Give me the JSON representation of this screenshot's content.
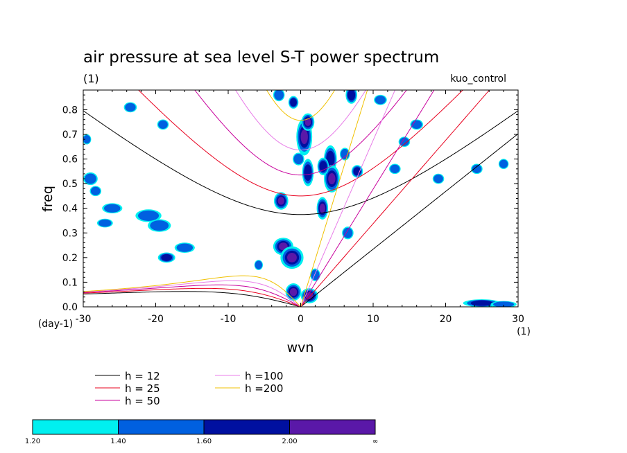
{
  "chart_data": {
    "type": "heatmap",
    "title": "air pressure at sea level S-T power spectrum",
    "subtitle_left": "(1)",
    "subtitle_right": "kuo_control",
    "xlabel": "wvn",
    "ylabel": "freq",
    "x_unit_label": "(1)",
    "y_unit_label": "(day-1)",
    "xlim": [
      -30,
      30
    ],
    "ylim": [
      0,
      0.88
    ],
    "x_ticks": [
      -30,
      -20,
      -10,
      0,
      10,
      20,
      30
    ],
    "x_tick_labels": [
      "-30",
      "-20",
      "-10",
      "0",
      "10",
      "20",
      "30"
    ],
    "y_ticks": [
      0.0,
      0.1,
      0.2,
      0.3,
      0.4,
      0.5,
      0.6,
      0.7,
      0.8
    ],
    "y_tick_labels": [
      "0.0",
      "0.1",
      "0.2",
      "0.3",
      "0.4",
      "0.5",
      "0.6",
      "0.7",
      "0.8"
    ],
    "dispersion_curves": [
      {
        "label": "h = 12",
        "h": 12,
        "color": "#000000"
      },
      {
        "label": "h = 25",
        "h": 25,
        "color": "#e8001e"
      },
      {
        "label": "h = 50",
        "h": 50,
        "color": "#c8009c"
      },
      {
        "label": "h =100",
        "h": 100,
        "color": "#e87ce8"
      },
      {
        "label": "h =200",
        "h": 200,
        "color": "#f0c000"
      }
    ],
    "colorbar": {
      "labels": [
        "1.20",
        "1.40",
        "1.60",
        "2.00",
        "∞"
      ],
      "colors": [
        "#00f0f0",
        "#0060e0",
        "#0010a0",
        "#5a18a8"
      ]
    },
    "blobs": [
      {
        "x": 0.5,
        "y": 0.69,
        "rx": 0.9,
        "ry": 0.07,
        "level": 3
      },
      {
        "x": 1.0,
        "y": 0.75,
        "rx": 0.7,
        "ry": 0.03,
        "level": 3
      },
      {
        "x": 1.0,
        "y": 0.545,
        "rx": 0.6,
        "ry": 0.05,
        "level": 2
      },
      {
        "x": 4.1,
        "y": 0.6,
        "rx": 0.7,
        "ry": 0.05,
        "level": 2
      },
      {
        "x": 4.3,
        "y": 0.52,
        "rx": 0.9,
        "ry": 0.05,
        "level": 3
      },
      {
        "x": 3.1,
        "y": 0.57,
        "rx": 0.6,
        "ry": 0.03,
        "level": 2
      },
      {
        "x": 3.0,
        "y": 0.4,
        "rx": 0.6,
        "ry": 0.04,
        "level": 3
      },
      {
        "x": -2.7,
        "y": 0.43,
        "rx": 0.8,
        "ry": 0.03,
        "level": 3
      },
      {
        "x": -2.4,
        "y": 0.245,
        "rx": 1.2,
        "ry": 0.03,
        "level": 3
      },
      {
        "x": -1.2,
        "y": 0.2,
        "rx": 1.4,
        "ry": 0.04,
        "level": 3
      },
      {
        "x": -1.0,
        "y": 0.06,
        "rx": 0.9,
        "ry": 0.03,
        "level": 3
      },
      {
        "x": 1.2,
        "y": 0.045,
        "rx": 1.0,
        "ry": 0.025,
        "level": 3
      },
      {
        "x": 7.0,
        "y": 0.86,
        "rx": 0.6,
        "ry": 0.03,
        "level": 2
      },
      {
        "x": 6.1,
        "y": 0.62,
        "rx": 0.5,
        "ry": 0.02,
        "level": 1
      },
      {
        "x": 7.8,
        "y": 0.55,
        "rx": 0.6,
        "ry": 0.02,
        "level": 2
      },
      {
        "x": -1.0,
        "y": 0.83,
        "rx": 0.5,
        "ry": 0.02,
        "level": 2
      },
      {
        "x": -0.3,
        "y": 0.6,
        "rx": 0.6,
        "ry": 0.02,
        "level": 1
      },
      {
        "x": -3.0,
        "y": 0.86,
        "rx": 0.6,
        "ry": 0.02,
        "level": 1
      },
      {
        "x": 6.5,
        "y": 0.3,
        "rx": 0.6,
        "ry": 0.02,
        "level": 1
      },
      {
        "x": 2.0,
        "y": 0.13,
        "rx": 0.5,
        "ry": 0.02,
        "level": 1
      },
      {
        "x": -5.8,
        "y": 0.17,
        "rx": 0.4,
        "ry": 0.015,
        "level": 1
      },
      {
        "x": -23.5,
        "y": 0.81,
        "rx": 0.7,
        "ry": 0.015,
        "level": 1
      },
      {
        "x": -19.0,
        "y": 0.74,
        "rx": 0.6,
        "ry": 0.015,
        "level": 1
      },
      {
        "x": -29.0,
        "y": 0.52,
        "rx": 0.8,
        "ry": 0.02,
        "level": 1
      },
      {
        "x": -28.3,
        "y": 0.47,
        "rx": 0.6,
        "ry": 0.015,
        "level": 1
      },
      {
        "x": -26.0,
        "y": 0.4,
        "rx": 1.2,
        "ry": 0.015,
        "level": 1
      },
      {
        "x": -27.0,
        "y": 0.34,
        "rx": 0.9,
        "ry": 0.012,
        "level": 1
      },
      {
        "x": -21.0,
        "y": 0.37,
        "rx": 1.6,
        "ry": 0.02,
        "level": 1
      },
      {
        "x": -19.5,
        "y": 0.33,
        "rx": 1.4,
        "ry": 0.02,
        "level": 1
      },
      {
        "x": -16.0,
        "y": 0.24,
        "rx": 1.2,
        "ry": 0.015,
        "level": 1
      },
      {
        "x": -18.5,
        "y": 0.2,
        "rx": 1.0,
        "ry": 0.015,
        "level": 2
      },
      {
        "x": -29.5,
        "y": 0.68,
        "rx": 0.4,
        "ry": 0.015,
        "level": 1
      },
      {
        "x": 11.0,
        "y": 0.84,
        "rx": 0.7,
        "ry": 0.015,
        "level": 1
      },
      {
        "x": 16.0,
        "y": 0.74,
        "rx": 0.7,
        "ry": 0.015,
        "level": 1
      },
      {
        "x": 14.3,
        "y": 0.67,
        "rx": 0.6,
        "ry": 0.015,
        "level": 1
      },
      {
        "x": 13.0,
        "y": 0.56,
        "rx": 0.6,
        "ry": 0.015,
        "level": 1
      },
      {
        "x": 19.0,
        "y": 0.52,
        "rx": 0.6,
        "ry": 0.015,
        "level": 1
      },
      {
        "x": 24.3,
        "y": 0.56,
        "rx": 0.6,
        "ry": 0.015,
        "level": 1
      },
      {
        "x": 28.0,
        "y": 0.58,
        "rx": 0.5,
        "ry": 0.015,
        "level": 1
      },
      {
        "x": 25.0,
        "y": 0.015,
        "rx": 2.4,
        "ry": 0.01,
        "level": 2
      },
      {
        "x": 28.0,
        "y": 0.01,
        "rx": 1.6,
        "ry": 0.008,
        "level": 1
      }
    ]
  }
}
